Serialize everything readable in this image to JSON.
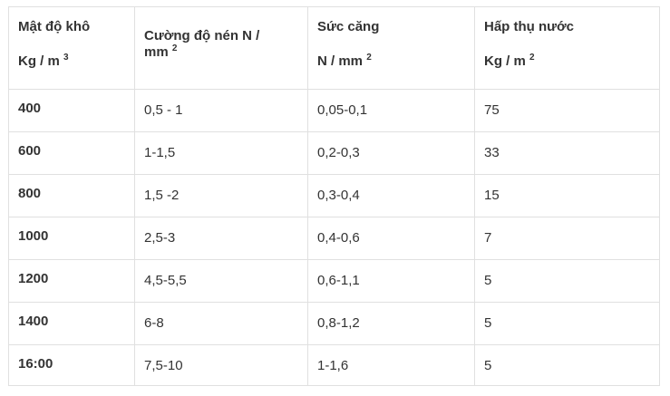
{
  "headers": [
    {
      "line1": "Mật độ khô",
      "line2": "Kg / m",
      "sup": "3"
    },
    {
      "line1": "Cường độ nén N /",
      "line2": "mm",
      "sup": "2"
    },
    {
      "line1": "Sức căng",
      "line2": "N / mm",
      "sup": "2"
    },
    {
      "line1": "Hấp thụ nước",
      "line2": "Kg / m",
      "sup": "2"
    }
  ],
  "rows": [
    [
      "400",
      "0,5 - 1",
      "0,05-0,1",
      "75"
    ],
    [
      "600",
      "1-1,5",
      "0,2-0,3",
      "33"
    ],
    [
      "800",
      "1,5 -2",
      "0,3-0,4",
      "15"
    ],
    [
      "1000",
      "2,5-3",
      "0,4-0,6",
      "7"
    ],
    [
      "1200",
      "4,5-5,5",
      "0,6-1,1",
      "5"
    ],
    [
      "1400",
      "6-8",
      "0,8-1,2",
      "5"
    ],
    [
      "16:00",
      "7,5-10",
      "1-1,6",
      "5"
    ]
  ]
}
